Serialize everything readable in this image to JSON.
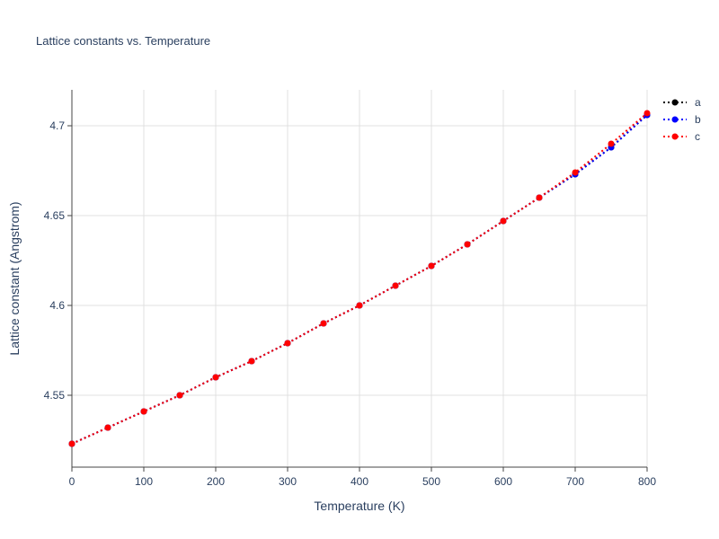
{
  "chart_data": {
    "type": "line",
    "title": "Lattice constants vs. Temperature",
    "xlabel": "Temperature (K)",
    "ylabel": "Lattice constant (Angstrom)",
    "xlim": [
      0,
      800
    ],
    "ylim": [
      4.51,
      4.72
    ],
    "x_ticks": [
      0,
      100,
      200,
      300,
      400,
      500,
      600,
      700,
      800
    ],
    "x_tick_labels": [
      "0",
      "100",
      "200",
      "300",
      "400",
      "500",
      "600",
      "700",
      "800"
    ],
    "y_ticks": [
      4.55,
      4.6,
      4.65,
      4.7
    ],
    "y_tick_labels": [
      "4.55",
      "4.6",
      "4.65",
      "4.7"
    ],
    "grid": true,
    "legend_position": "top-right",
    "x": [
      0,
      50,
      100,
      150,
      200,
      250,
      300,
      350,
      400,
      450,
      500,
      550,
      600,
      650,
      700,
      750,
      800
    ],
    "series": [
      {
        "name": "a",
        "color": "#000000",
        "values": [
          4.523,
          4.532,
          4.541,
          4.55,
          4.56,
          4.569,
          4.579,
          4.59,
          4.6,
          4.611,
          4.622,
          4.634,
          4.647,
          4.66,
          4.673,
          4.688,
          4.706
        ]
      },
      {
        "name": "b",
        "color": "#0000ff",
        "values": [
          4.523,
          4.532,
          4.541,
          4.55,
          4.56,
          4.569,
          4.579,
          4.59,
          4.6,
          4.611,
          4.622,
          4.634,
          4.647,
          4.66,
          4.673,
          4.688,
          4.706
        ]
      },
      {
        "name": "c",
        "color": "#ff0000",
        "values": [
          4.523,
          4.532,
          4.541,
          4.55,
          4.56,
          4.569,
          4.579,
          4.59,
          4.6,
          4.611,
          4.622,
          4.634,
          4.647,
          4.66,
          4.674,
          4.69,
          4.707
        ]
      }
    ]
  }
}
